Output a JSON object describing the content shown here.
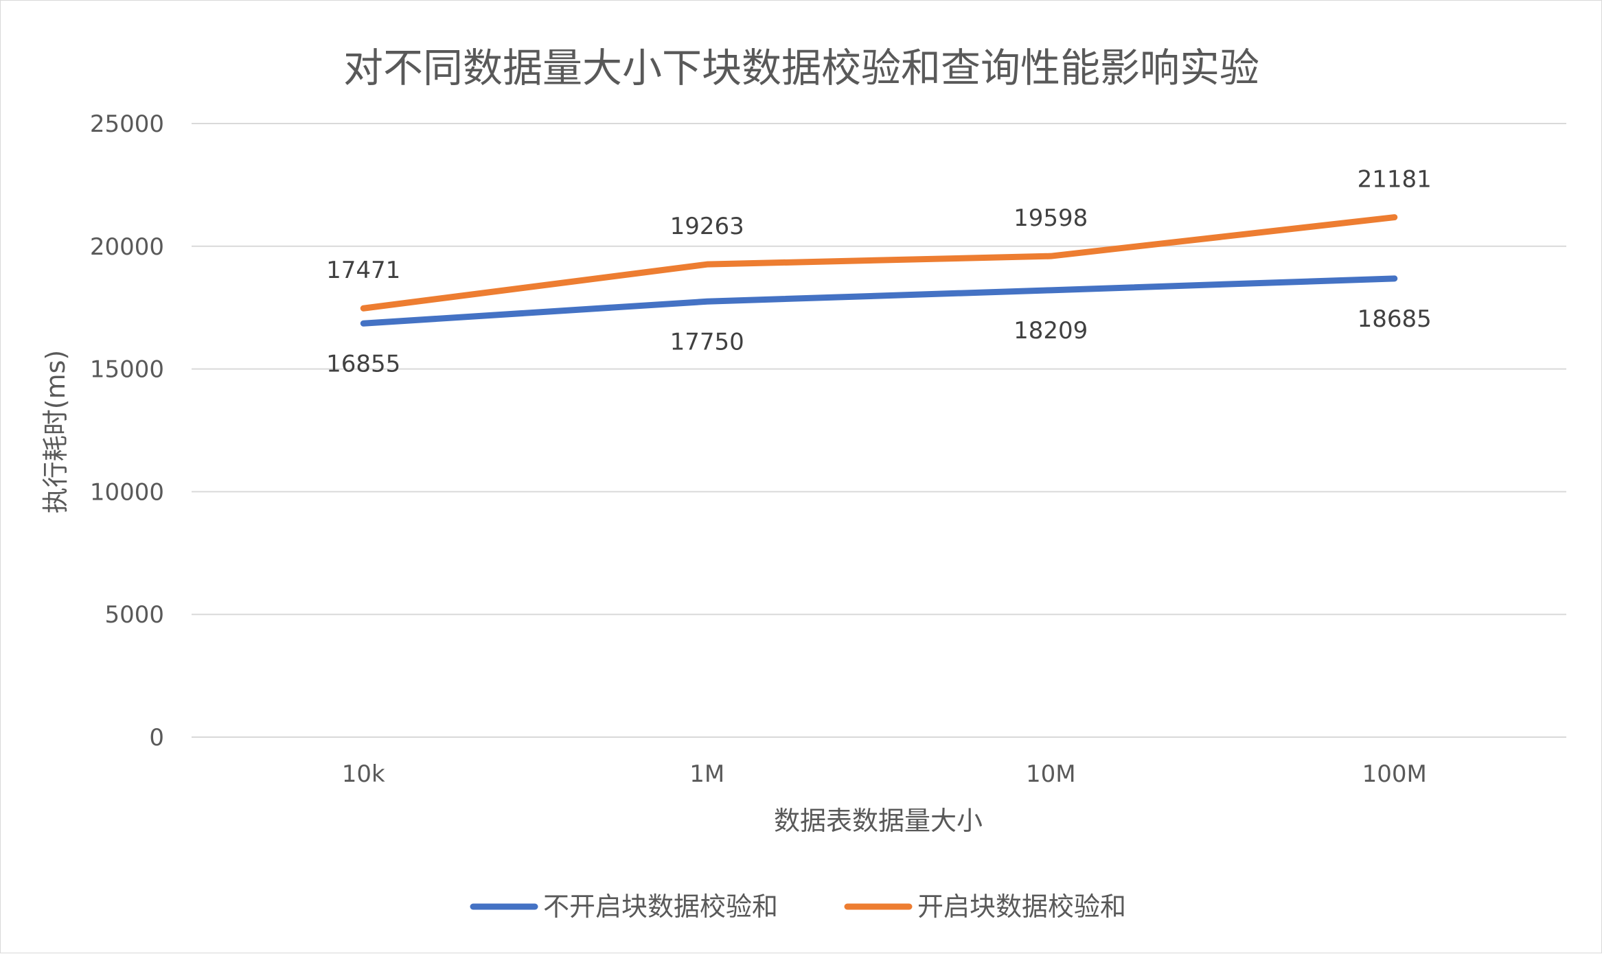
{
  "chart_data": {
    "type": "line",
    "title": "对不同数据量大小下块数据校验和查询性能影响实验",
    "xlabel": "数据表数据量大小",
    "ylabel": "执行耗时(ms)",
    "categories": [
      "10k",
      "1M",
      "10M",
      "100M"
    ],
    "ylim": [
      0,
      25000
    ],
    "yticks": [
      "0",
      "5000",
      "10000",
      "15000",
      "20000",
      "25000"
    ],
    "grid": true,
    "legend_position": "bottom",
    "series": [
      {
        "name": "不开启块数据校验和",
        "color": "#4472C4",
        "values": [
          16855,
          17750,
          18209,
          18685
        ],
        "labels": [
          "16855",
          "17750",
          "18209",
          "18685"
        ],
        "label_position": "below"
      },
      {
        "name": "开启块数据校验和",
        "color": "#ED7D31",
        "values": [
          17471,
          19263,
          19598,
          21181
        ],
        "labels": [
          "17471",
          "19263",
          "19598",
          "21181"
        ],
        "label_position": "above"
      }
    ]
  }
}
